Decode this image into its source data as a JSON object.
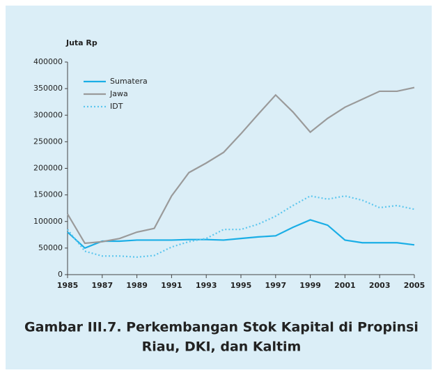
{
  "chart_data": {
    "type": "line",
    "title": [
      "Gambar III.7. Perkembangan Stok Kapital di Propinsi",
      "Riau, DKI, dan Kaltim"
    ],
    "y_label": "Juta Rp",
    "x": [
      1985,
      1986,
      1987,
      1988,
      1989,
      1990,
      1991,
      1992,
      1993,
      1994,
      1995,
      1996,
      1997,
      1998,
      1999,
      2000,
      2001,
      2002,
      2003,
      2004,
      2005
    ],
    "xlim": [
      1985,
      2005
    ],
    "xticks": [
      1985,
      1987,
      1989,
      1991,
      1993,
      1995,
      1997,
      1999,
      2001,
      2003,
      2005
    ],
    "ylim": [
      0,
      400000
    ],
    "yticks": [
      0,
      50000,
      100000,
      150000,
      200000,
      250000,
      300000,
      350000,
      400000
    ],
    "legend": "upper-left",
    "series": [
      {
        "name": "Sumatera",
        "color": "#1aaee6",
        "style": "solid",
        "values": [
          80000,
          50000,
          63000,
          63000,
          65000,
          65000,
          65000,
          66000,
          66000,
          65000,
          68000,
          71000,
          73000,
          89000,
          103000,
          93000,
          65000,
          60000,
          60000,
          60000,
          56000
        ]
      },
      {
        "name": "Jawa",
        "color": "#9a9a9a",
        "style": "solid",
        "values": [
          114000,
          59000,
          62000,
          68000,
          80000,
          87000,
          148000,
          192000,
          210000,
          230000,
          265000,
          302000,
          338000,
          306000,
          268000,
          294000,
          315000,
          330000,
          345000,
          345000,
          352000
        ]
      },
      {
        "name": "IDT",
        "color": "#5cc6ee",
        "style": "dotted",
        "values": [
          85000,
          44000,
          35000,
          35000,
          33000,
          36000,
          52000,
          62000,
          68000,
          85000,
          85000,
          95000,
          110000,
          130000,
          148000,
          142000,
          148000,
          140000,
          126000,
          130000,
          123000
        ]
      }
    ]
  }
}
